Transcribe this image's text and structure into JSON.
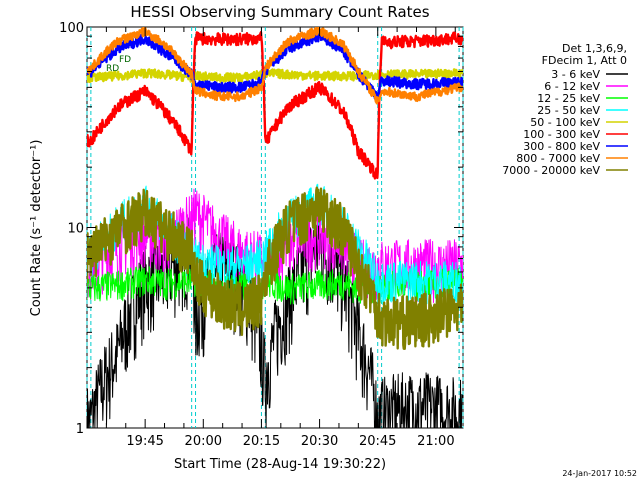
{
  "chart_data": {
    "type": "line",
    "title": "HESSI Observing Summary Count Rates",
    "xlabel": "Start Time (28-Aug-14 19:30:22)",
    "ylabel": "Count Rate (s⁻¹ detector⁻¹)",
    "yscale": "log",
    "ylim": [
      1,
      100
    ],
    "xlim_minutes_after_19_30": [
      0,
      97
    ],
    "x_ticks": [
      {
        "label": "19:45",
        "minute": 15
      },
      {
        "label": "20:00",
        "minute": 30
      },
      {
        "label": "20:15",
        "minute": 45
      },
      {
        "label": "20:30",
        "minute": 60
      },
      {
        "label": "20:45",
        "minute": 75
      },
      {
        "label": "21:00",
        "minute": 90
      }
    ],
    "y_ticks": [
      {
        "label": "1",
        "value": 1
      },
      {
        "label": "10",
        "value": 10
      },
      {
        "label": "100",
        "value": 100
      }
    ],
    "legend_header": [
      "Det 1,3,6,9,",
      "FDecim 1, Att 0"
    ],
    "legend_position": "right",
    "annotations": {
      "rd": "RD",
      "fd": "FD"
    },
    "footer_date": "24-Jan-2017 10:52",
    "data_gaps_minutes": [
      [
        0,
        1
      ],
      [
        27,
        28
      ],
      [
        45,
        46
      ],
      [
        75,
        76
      ],
      [
        96,
        97
      ]
    ],
    "series": [
      {
        "name": "3 - 6 keV",
        "color": "#000000",
        "x": [
          1,
          8,
          15,
          20,
          27,
          28,
          34,
          40,
          45,
          46,
          52,
          60,
          66,
          70,
          75,
          76,
          85,
          96
        ],
        "y": [
          1.1,
          2.4,
          5.5,
          6.0,
          8.0,
          3.5,
          6.5,
          5.5,
          2.5,
          1.8,
          4.5,
          8.5,
          5.5,
          3.0,
          1.1,
          1.2,
          1.3,
          1.2
        ]
      },
      {
        "name": "6 - 12 keV",
        "color": "#ff00ff",
        "x": [
          1,
          8,
          15,
          20,
          27,
          28,
          34,
          40,
          45,
          46,
          52,
          60,
          66,
          70,
          75,
          76,
          85,
          96
        ],
        "y": [
          6.5,
          8.0,
          9.5,
          8.5,
          11.0,
          12.0,
          9.0,
          7.5,
          7.0,
          6.5,
          8.5,
          9.5,
          8.5,
          6.5,
          6.5,
          6.5,
          6.5,
          6.5
        ]
      },
      {
        "name": "12 - 25 keV",
        "color": "#00ff00",
        "x": [
          1,
          8,
          15,
          20,
          27,
          28,
          34,
          40,
          45,
          46,
          52,
          60,
          66,
          70,
          75,
          76,
          85,
          96
        ],
        "y": [
          5.0,
          5.2,
          5.5,
          5.3,
          5.4,
          5.5,
          5.0,
          5.1,
          5.3,
          5.4,
          5.0,
          5.2,
          5.3,
          5.0,
          5.1,
          5.1,
          5.2,
          5.3
        ]
      },
      {
        "name": "25 - 50 keV",
        "color": "#00ffff",
        "x": [
          1,
          8,
          15,
          20,
          27,
          28,
          34,
          40,
          45,
          46,
          52,
          60,
          66,
          70,
          75,
          76,
          85,
          96
        ],
        "y": [
          7.5,
          10.5,
          13.0,
          10.5,
          7.0,
          7.0,
          6.5,
          6.5,
          7.0,
          7.5,
          11.0,
          13.5,
          10.5,
          8.0,
          5.5,
          5.5,
          5.5,
          5.5
        ]
      },
      {
        "name": "50 - 100 keV",
        "color": "#d4d400",
        "x": [
          1,
          8,
          15,
          20,
          27,
          28,
          34,
          40,
          45,
          46,
          52,
          60,
          66,
          70,
          75,
          76,
          85,
          96
        ],
        "y": [
          56,
          57,
          59,
          58,
          56,
          57,
          56,
          56,
          58,
          59,
          58,
          57,
          57,
          57,
          58,
          58,
          58,
          59
        ]
      },
      {
        "name": "100 - 300 keV",
        "color": "#ff0000",
        "x": [
          1,
          8,
          15,
          20,
          27,
          28,
          34,
          40,
          45,
          46,
          52,
          60,
          66,
          70,
          75,
          76,
          85,
          96
        ],
        "y": [
          27,
          40,
          48,
          38,
          24,
          88,
          87,
          87,
          88,
          26,
          40,
          50,
          38,
          24,
          18,
          84,
          85,
          88
        ]
      },
      {
        "name": "300 - 800 keV",
        "color": "#0000ff",
        "x": [
          1,
          8,
          15,
          20,
          27,
          28,
          34,
          40,
          45,
          46,
          52,
          60,
          66,
          70,
          75,
          76,
          85,
          96
        ],
        "y": [
          60,
          78,
          88,
          75,
          58,
          52,
          50,
          50,
          53,
          60,
          78,
          90,
          76,
          58,
          45,
          54,
          52,
          53
        ]
      },
      {
        "name": "800 - 7000 keV",
        "color": "#ff8000",
        "x": [
          1,
          8,
          15,
          20,
          27,
          28,
          34,
          40,
          45,
          46,
          52,
          60,
          66,
          70,
          75,
          76,
          85,
          96
        ],
        "y": [
          62,
          85,
          95,
          82,
          58,
          48,
          45,
          45,
          50,
          62,
          85,
          96,
          82,
          60,
          42,
          48,
          45,
          50
        ]
      },
      {
        "name": "7000 - 20000 keV",
        "color": "#808000",
        "x": [
          1,
          8,
          15,
          20,
          27,
          28,
          34,
          40,
          45,
          46,
          52,
          60,
          66,
          70,
          75,
          76,
          85,
          96
        ],
        "y": [
          7.5,
          10.0,
          12.0,
          10.0,
          7.5,
          5.5,
          4.5,
          4.0,
          4.5,
          6.0,
          10.5,
          13.0,
          10.0,
          6.5,
          4.0,
          3.5,
          3.5,
          4.0
        ]
      }
    ]
  }
}
